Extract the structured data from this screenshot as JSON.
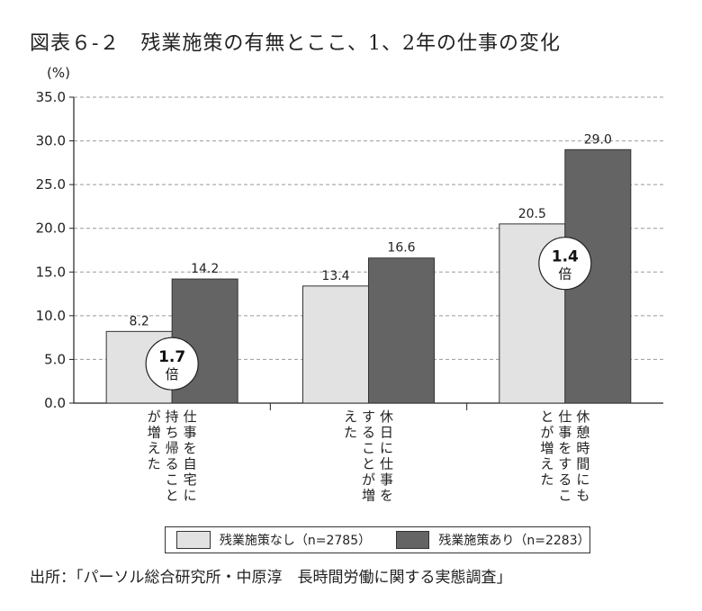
{
  "title": "図表６-２　残業施策の有無とここ、1、2年の仕事の変化",
  "source": "出所：「パーソル総合研究所・中原淳　長時間労働に関する実態調査」",
  "colors": {
    "series_1": "#e2e2e2",
    "series_2": "#646464",
    "axis": "#222222",
    "grid": "#999999"
  },
  "chart_data": {
    "type": "bar",
    "unit": "(%)",
    "ylim": [
      0,
      35
    ],
    "yticks": [
      "0.0",
      "5.0",
      "10.0",
      "15.0",
      "20.0",
      "25.0",
      "30.0",
      "35.0"
    ],
    "grid": true,
    "legend_position": "bottom",
    "categories": [
      [
        "仕事を自宅に",
        "持ち帰ること",
        "が増えた"
      ],
      [
        "休日に仕事を",
        "することが増",
        "えた"
      ],
      [
        "休憩時間にも",
        "仕事をするこ",
        "とが増えた"
      ]
    ],
    "series": [
      {
        "name": "残業施策なし（n=2785）",
        "values": [
          8.2,
          13.4,
          20.5
        ]
      },
      {
        "name": "残業施策あり（n=2283）",
        "values": [
          14.2,
          16.6,
          29.0
        ]
      }
    ],
    "annotations": [
      {
        "category_index": 0,
        "number": "1.7",
        "unit": "倍"
      },
      {
        "category_index": 2,
        "number": "1.4",
        "unit": "倍"
      }
    ]
  }
}
